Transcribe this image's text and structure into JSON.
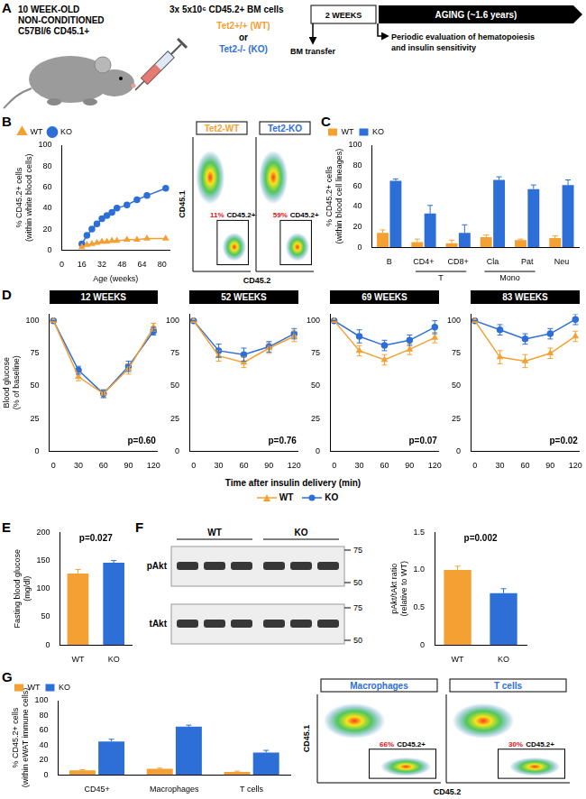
{
  "schematic": {
    "panel": "A",
    "recipient": [
      "10 WEEK-OLD",
      "NON-CONDITIONED",
      "C57Bl/6 CD45.1+"
    ],
    "donor": "3x 5x10⁶ CD45.2+ BM cells",
    "genotypes": [
      {
        "text": "Tet2+/+ (WT)",
        "color": "#f5a033"
      },
      {
        "text": "or",
        "color": "#000000"
      },
      {
        "text": "Tet2-/- (KO)",
        "color": "#2d6fd6"
      }
    ],
    "timeline": [
      "2 WEEKS",
      "AGING (~1.6 years)"
    ],
    "transfer": "BM transfer",
    "evaluation": [
      "Periodic evaluation of hematopoiesis",
      "and insulin sensitivity"
    ]
  },
  "chart_data": [
    {
      "panel": "B",
      "type": "line",
      "x_label": "Age (weeks)",
      "y_label": [
        "% CD45.2+ cells",
        "(within white blood cells)"
      ],
      "x": [
        16,
        20,
        24,
        28,
        32,
        36,
        40,
        44,
        52,
        60,
        68,
        83
      ],
      "series": [
        {
          "name": "WT",
          "color": "#f5a033",
          "marker": "triangle",
          "line_style": "solid",
          "values": [
            3,
            5,
            6,
            7,
            8,
            8,
            9,
            9,
            10,
            10,
            11,
            11
          ]
        },
        {
          "name": "KO",
          "color": "#2d6fd6",
          "marker": "circle",
          "line_style": "solid",
          "values": [
            6,
            14,
            20,
            25,
            30,
            33,
            36,
            40,
            43,
            48,
            52,
            59
          ]
        }
      ],
      "xlim": [
        0,
        86
      ],
      "xticks": [
        0,
        16,
        32,
        48,
        64,
        80
      ],
      "ylim": [
        0,
        100
      ],
      "yticks": [
        0,
        20,
        40,
        60,
        80,
        100
      ],
      "grid": false,
      "legend": "upper left"
    },
    {
      "panel": "C",
      "type": "bar",
      "y_label": [
        "% CD45.2+ cells",
        "(within blood cell lineages)"
      ],
      "categories": [
        "B",
        "CD4+",
        "CD8+",
        "Cla",
        "Pat",
        "Neu"
      ],
      "groups": [
        {
          "label": "T",
          "categories": [
            "CD4+",
            "CD8+"
          ]
        },
        {
          "label": "Mono",
          "categories": [
            "Cla",
            "Pat"
          ]
        }
      ],
      "series": [
        {
          "name": "WT",
          "color": "#f5a033",
          "values": [
            14,
            5,
            4,
            10,
            7,
            9
          ],
          "errors": [
            3,
            3,
            3,
            2,
            1,
            2
          ]
        },
        {
          "name": "KO",
          "color": "#2d6fd6",
          "values": [
            65,
            33,
            14,
            66,
            57,
            61
          ],
          "errors": [
            2,
            8,
            8,
            3,
            4,
            5
          ]
        }
      ],
      "ylim": [
        0,
        100
      ],
      "yticks": [
        0,
        20,
        40,
        60,
        80,
        100
      ],
      "grid": false,
      "legend": "upper left"
    },
    {
      "panel": "D",
      "type": "line",
      "x_label": "Time after insulin delivery (min)",
      "y_label": [
        "Blood glucose",
        "(% of baseline)"
      ],
      "x": [
        0,
        30,
        60,
        90,
        120
      ],
      "xlim": [
        -5,
        125
      ],
      "xticks": [
        0,
        30,
        60,
        90,
        120
      ],
      "ylim": [
        0,
        105
      ],
      "yticks": [
        0,
        25,
        50,
        75,
        100
      ],
      "grid": false,
      "legend": "bottom",
      "subplots": [
        {
          "title": "12 WEEKS",
          "annotation": "p=0.60",
          "series": [
            {
              "name": "WT",
              "color": "#f5a033",
              "marker": "triangle",
              "line_style": "solid",
              "values": [
                100,
                57,
                44,
                63,
                95
              ],
              "errors": [
                0,
                3,
                3,
                4,
                3
              ]
            },
            {
              "name": "KO",
              "color": "#2d6fd6",
              "marker": "circle",
              "line_style": "solid",
              "values": [
                100,
                62,
                44,
                65,
                92
              ],
              "errors": [
                0,
                3,
                3,
                4,
                3
              ]
            }
          ]
        },
        {
          "title": "52 WEEKS",
          "annotation": "p=0.76",
          "series": [
            {
              "name": "WT",
              "color": "#f5a033",
              "marker": "triangle",
              "line_style": "solid",
              "values": [
                100,
                73,
                68,
                79,
                88
              ],
              "errors": [
                0,
                4,
                4,
                4,
                4
              ]
            },
            {
              "name": "KO",
              "color": "#2d6fd6",
              "marker": "circle",
              "line_style": "solid",
              "values": [
                100,
                77,
                74,
                80,
                90
              ],
              "errors": [
                0,
                5,
                5,
                4,
                4
              ]
            }
          ]
        },
        {
          "title": "69 WEEKS",
          "annotation": "p=0.07",
          "series": [
            {
              "name": "WT",
              "color": "#f5a033",
              "marker": "triangle",
              "line_style": "solid",
              "values": [
                100,
                77,
                70,
                78,
                87
              ],
              "errors": [
                0,
                4,
                4,
                4,
                4
              ]
            },
            {
              "name": "KO",
              "color": "#2d6fd6",
              "marker": "circle",
              "line_style": "solid",
              "values": [
                100,
                88,
                81,
                85,
                95
              ],
              "errors": [
                0,
                5,
                4,
                4,
                5
              ]
            }
          ]
        },
        {
          "title": "83 WEEKS",
          "annotation": "p=0.02",
          "series": [
            {
              "name": "WT",
              "color": "#f5a033",
              "marker": "triangle",
              "line_style": "solid",
              "values": [
                100,
                72,
                69,
                75,
                88
              ],
              "errors": [
                0,
                5,
                5,
                4,
                4
              ]
            },
            {
              "name": "KO",
              "color": "#2d6fd6",
              "marker": "circle",
              "line_style": "solid",
              "values": [
                100,
                93,
                86,
                90,
                101
              ],
              "errors": [
                0,
                4,
                4,
                4,
                4
              ]
            }
          ]
        }
      ]
    },
    {
      "panel": "E",
      "type": "bar",
      "y_label": [
        "Fasting blood glucose",
        "(mg/dl)"
      ],
      "categories": [
        "WT",
        "KO"
      ],
      "values": [
        127,
        146
      ],
      "errors": [
        7,
        4
      ],
      "colors": [
        "#f5a033",
        "#2d6fd6"
      ],
      "annotation": "p=0.027",
      "ylim": [
        0,
        200
      ],
      "yticks": [
        0,
        50,
        100,
        150,
        200
      ],
      "grid": false
    },
    {
      "panel": "F",
      "type": "bar",
      "y_label": [
        "pAkt/tAkt ratio",
        "(relative to WT)"
      ],
      "categories": [
        "WT",
        "KO"
      ],
      "values": [
        1.0,
        0.69
      ],
      "errors": [
        0.05,
        0.06
      ],
      "colors": [
        "#f5a033",
        "#2d6fd6"
      ],
      "annotation": "p=0.002",
      "ylim": [
        0,
        1.5
      ],
      "yticks": [
        0,
        0.5,
        {
          "value": 1,
          "label": "1.0"
        },
        1.5
      ],
      "grid": false
    },
    {
      "panel": "G",
      "type": "bar",
      "y_label": [
        "% CD45.2+ cells",
        "(within eWAT immune cells)"
      ],
      "categories": [
        "CD45+",
        "Macrophages",
        "T cells"
      ],
      "series": [
        {
          "name": "WT",
          "color": "#f5a033",
          "values": [
            6,
            8,
            4
          ],
          "errors": [
            1,
            1,
            1
          ]
        },
        {
          "name": "KO",
          "color": "#2d6fd6",
          "values": [
            45,
            65,
            30
          ],
          "errors": [
            3,
            2,
            3
          ]
        }
      ],
      "ylim": [
        0,
        100
      ],
      "yticks": [
        0,
        20,
        40,
        60,
        80,
        100
      ],
      "grid": false,
      "legend": "upper left"
    }
  ],
  "blot": {
    "panel": "F",
    "groups": [
      "WT",
      "KO"
    ],
    "rows": [
      "pAkt",
      "tAkt"
    ],
    "markers": [
      75,
      50
    ]
  },
  "flow_plots": [
    {
      "panel": "B",
      "x_label": "CD45.2",
      "y_label": "CD45.1",
      "plots": [
        {
          "title": "Tet2-WT",
          "color": "#f5a033",
          "gate_percent": "11%",
          "gate_text": "CD45.2+"
        },
        {
          "title": "Tet2-KO",
          "color": "#2d6fd6",
          "gate_percent": "59%",
          "gate_text": "CD45.2+"
        }
      ]
    },
    {
      "panel": "G",
      "x_label": "CD45.2",
      "y_label": "CD45.1",
      "plots": [
        {
          "title": "Macrophages",
          "color": "#2d6fd6",
          "gate_percent": "66%",
          "gate_text": "CD45.2+"
        },
        {
          "title": "T cells",
          "color": "#2d6fd6",
          "gate_percent": "30%",
          "gate_text": "CD45.2+"
        }
      ]
    }
  ]
}
